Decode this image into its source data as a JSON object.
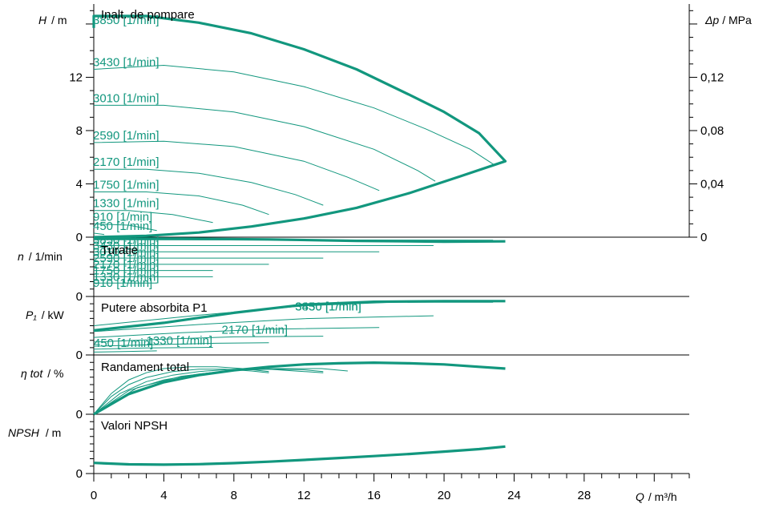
{
  "chart_data": {
    "type": "line",
    "colors": {
      "curve": "#12977e",
      "axis": "#000000"
    },
    "x_axis": {
      "label_sym": "Q",
      "label_unit": "/ m³/h",
      "ticks": [
        "0",
        "4",
        "8",
        "12",
        "16",
        "20",
        "24",
        "28"
      ],
      "range": [
        0,
        34
      ]
    },
    "panels": [
      {
        "id": "head",
        "title": "Inalt. de pompare",
        "ylabel_sym": "H",
        "ylabel_unit": "/ m",
        "yrange": [
          0,
          17.5
        ],
        "yticks": [
          "0",
          "4",
          "8",
          "12"
        ],
        "right_axis": {
          "label_sym": "Δp",
          "label_unit": "/ MPa",
          "ticks": [
            "0",
            "0,04",
            "0,08",
            "0,12"
          ],
          "values_in_left_units": [
            0,
            4,
            8,
            12
          ]
        },
        "speed_curves": [
          {
            "label": "3850 [1/min]",
            "points": [
              [
                0,
                16.6
              ],
              [
                3,
                16.6
              ],
              [
                6,
                16.1
              ],
              [
                9,
                15.3
              ],
              [
                12,
                14.1
              ],
              [
                15,
                12.6
              ],
              [
                18,
                10.7
              ],
              [
                20,
                9.4
              ],
              [
                22,
                7.8
              ],
              [
                23.5,
                5.7
              ]
            ]
          },
          {
            "label": "3430 [1/min]",
            "points": [
              [
                0,
                12.6
              ],
              [
                4,
                12.9
              ],
              [
                8,
                12.4
              ],
              [
                12,
                11.3
              ],
              [
                16,
                9.7
              ],
              [
                19,
                8.1
              ],
              [
                21.5,
                6.6
              ],
              [
                22.9,
                5.4
              ]
            ]
          },
          {
            "label": "3010 [1/min]",
            "points": [
              [
                0,
                9.9
              ],
              [
                4,
                9.9
              ],
              [
                8,
                9.4
              ],
              [
                12,
                8.3
              ],
              [
                16,
                6.6
              ],
              [
                18.5,
                5.0
              ],
              [
                19.5,
                4.2
              ]
            ]
          },
          {
            "label": "2590 [1/min]",
            "points": [
              [
                0,
                7.1
              ],
              [
                4,
                7.2
              ],
              [
                8,
                6.8
              ],
              [
                12,
                5.7
              ],
              [
                14.5,
                4.5
              ],
              [
                16.3,
                3.5
              ]
            ]
          },
          {
            "label": "2170 [1/min]",
            "points": [
              [
                0,
                5.1
              ],
              [
                3,
                5.1
              ],
              [
                6,
                4.8
              ],
              [
                9,
                4.1
              ],
              [
                11.5,
                3.2
              ],
              [
                13.1,
                2.4
              ]
            ]
          },
          {
            "label": "1750 [1/min]",
            "points": [
              [
                0,
                3.4
              ],
              [
                3,
                3.4
              ],
              [
                6,
                3.1
              ],
              [
                8.5,
                2.4
              ],
              [
                10,
                1.7
              ]
            ]
          },
          {
            "label": "1330 [1/min]",
            "points": [
              [
                0,
                2.0
              ],
              [
                2,
                2.0
              ],
              [
                4.5,
                1.7
              ],
              [
                6.8,
                1.1
              ]
            ]
          },
          {
            "label": "910 [1/min]",
            "points": [
              [
                0,
                1.0
              ],
              [
                2,
                0.9
              ],
              [
                3.6,
                0.5
              ]
            ]
          },
          {
            "label": "450 [1/min]",
            "points": [
              [
                0,
                0.3
              ],
              [
                0.6,
                0.2
              ]
            ]
          }
        ],
        "envelope": [
          [
            0,
            15.7
          ],
          [
            0,
            16.6
          ],
          [
            3,
            16.6
          ],
          [
            6,
            16.1
          ],
          [
            9,
            15.3
          ],
          [
            12,
            14.1
          ],
          [
            15,
            12.6
          ],
          [
            18,
            10.7
          ],
          [
            20,
            9.4
          ],
          [
            22,
            7.8
          ],
          [
            23.5,
            5.7
          ],
          [
            21,
            4.6
          ],
          [
            18,
            3.3
          ],
          [
            15,
            2.2
          ],
          [
            12,
            1.4
          ],
          [
            9,
            0.8
          ],
          [
            6,
            0.35
          ],
          [
            3,
            0.1
          ],
          [
            0,
            0
          ]
        ]
      },
      {
        "id": "speed",
        "title": "Turatie",
        "ylabel_sym": "n",
        "ylabel_unit": "/ 1/min",
        "yrange": [
          0,
          4000
        ],
        "yticks": [
          "0"
        ],
        "speed_curves": [
          {
            "label": "3850 [1/min]",
            "points": [
              [
                0,
                3820
              ],
              [
                22.8,
                3800
              ]
            ]
          },
          {
            "label": "3430 [1/min]",
            "points": [
              [
                0,
                3430
              ],
              [
                19.4,
                3430
              ]
            ]
          },
          {
            "label": "3010 [1/min]",
            "points": [
              [
                0,
                3010
              ],
              [
                16.3,
                3010
              ]
            ]
          },
          {
            "label": "2590 [1/min]",
            "points": [
              [
                0,
                2590
              ],
              [
                13.1,
                2590
              ]
            ]
          },
          {
            "label": "2170 [1/min]",
            "points": [
              [
                0,
                2170
              ],
              [
                10,
                2170
              ]
            ]
          },
          {
            "label": "1750 [1/min]",
            "points": [
              [
                0,
                1750
              ],
              [
                6.8,
                1750
              ]
            ]
          },
          {
            "label": "1330 [1/min]",
            "points": [
              [
                0,
                1330
              ],
              [
                6.8,
                1330
              ]
            ]
          },
          {
            "label": "910 [1/min]",
            "points": [
              [
                0,
                910
              ],
              [
                3.6,
                910
              ]
            ]
          }
        ],
        "envelope": [
          [
            0,
            3900
          ],
          [
            5,
            3900
          ],
          [
            10,
            3850
          ],
          [
            15,
            3750
          ],
          [
            20,
            3700
          ],
          [
            23.5,
            3720
          ]
        ]
      },
      {
        "id": "power",
        "title": "Putere absorbita P1",
        "ylabel_sym": "P₁",
        "ylabel_unit": "/ kW",
        "yrange": [
          0,
          1.0
        ],
        "yticks": [
          "0"
        ],
        "curve_labels": [
          {
            "label": "3850 [1/min]",
            "at": [
              11.5,
              0.76
            ]
          },
          {
            "label": "3430 [1/min]",
            "at": [
              11.5,
              0.76
            ]
          },
          {
            "label": "2170 [1/min]",
            "at": [
              7.3,
              0.36
            ]
          },
          {
            "label": "1330 [1/min]",
            "at": [
              3,
              0.18
            ]
          },
          {
            "label": "450 [1/min]",
            "at": [
              0,
              0.14
            ]
          }
        ],
        "speed_curves": [
          {
            "points": [
              [
                0,
                0.5
              ],
              [
                6,
                0.68
              ],
              [
                12,
                0.84
              ],
              [
                17,
                0.9
              ],
              [
                22.8,
                0.9
              ]
            ]
          },
          {
            "points": [
              [
                0,
                0.4
              ],
              [
                6,
                0.52
              ],
              [
                12,
                0.62
              ],
              [
                19.4,
                0.67
              ]
            ]
          },
          {
            "points": [
              [
                0,
                0.3
              ],
              [
                5,
                0.38
              ],
              [
                10,
                0.44
              ],
              [
                16.3,
                0.47
              ]
            ]
          },
          {
            "points": [
              [
                0,
                0.22
              ],
              [
                4,
                0.27
              ],
              [
                8,
                0.31
              ],
              [
                13.1,
                0.32
              ]
            ]
          },
          {
            "points": [
              [
                0,
                0.15
              ],
              [
                4,
                0.18
              ],
              [
                7,
                0.2
              ],
              [
                10,
                0.21
              ]
            ]
          },
          {
            "points": [
              [
                0,
                0.1
              ],
              [
                3,
                0.12
              ],
              [
                6.8,
                0.13
              ]
            ]
          },
          {
            "points": [
              [
                0,
                0.05
              ],
              [
                2,
                0.06
              ],
              [
                3.6,
                0.07
              ]
            ]
          }
        ],
        "envelope": [
          [
            0,
            0.42
          ],
          [
            4,
            0.55
          ],
          [
            8,
            0.72
          ],
          [
            12,
            0.86
          ],
          [
            16,
            0.91
          ],
          [
            20,
            0.92
          ],
          [
            23.5,
            0.92
          ]
        ]
      },
      {
        "id": "efficiency",
        "title": "Randament total",
        "ylabel_sym": "η tot",
        "ylabel_unit": "/ %",
        "yrange": [
          0,
          100
        ],
        "yticks": [
          "0"
        ],
        "speed_curves": [
          {
            "points": [
              [
                0,
                0
              ],
              [
                1,
                35
              ],
              [
                2,
                58
              ],
              [
                3,
                70
              ],
              [
                4,
                77
              ],
              [
                5.5,
                80
              ],
              [
                7,
                80
              ],
              [
                8.5,
                77
              ],
              [
                10,
                72
              ]
            ]
          },
          {
            "points": [
              [
                0,
                0
              ],
              [
                1,
                30
              ],
              [
                2,
                50
              ],
              [
                3,
                62
              ],
              [
                4.5,
                72
              ],
              [
                6,
                76
              ],
              [
                7.5,
                76
              ],
              [
                9,
                73
              ],
              [
                10,
                70
              ]
            ]
          },
          {
            "points": [
              [
                0,
                0
              ],
              [
                1.5,
                35
              ],
              [
                3,
                55
              ],
              [
                4.5,
                66
              ],
              [
                6,
                72
              ],
              [
                8,
                76
              ],
              [
                10,
                76
              ],
              [
                11.5,
                73
              ],
              [
                13.1,
                70
              ]
            ]
          },
          {
            "points": [
              [
                0,
                0
              ],
              [
                2,
                40
              ],
              [
                4,
                58
              ],
              [
                6,
                68
              ],
              [
                8,
                74
              ],
              [
                10,
                76
              ],
              [
                12,
                75
              ],
              [
                13.1,
                72
              ]
            ]
          },
          {
            "points": [
              [
                0,
                0
              ],
              [
                2.5,
                45
              ],
              [
                5,
                64
              ],
              [
                7.5,
                73
              ],
              [
                10,
                77
              ],
              [
                13,
                77
              ],
              [
                14.5,
                73
              ]
            ]
          }
        ],
        "envelope": [
          [
            0,
            0
          ],
          [
            2,
            34
          ],
          [
            4,
            54
          ],
          [
            6,
            66
          ],
          [
            8,
            74
          ],
          [
            10,
            80
          ],
          [
            12,
            84
          ],
          [
            14,
            86
          ],
          [
            16,
            87
          ],
          [
            18,
            86
          ],
          [
            20,
            84
          ],
          [
            22,
            80
          ],
          [
            23.5,
            77
          ]
        ]
      },
      {
        "id": "npsh",
        "title": "Valori NPSH",
        "ylabel_sym": "NPSH",
        "ylabel_unit": "/ m",
        "yrange": [
          0,
          4
        ],
        "yticks": [
          "0"
        ],
        "speed_curves": [],
        "envelope": [
          [
            0,
            0.72
          ],
          [
            2,
            0.62
          ],
          [
            4,
            0.6
          ],
          [
            6,
            0.63
          ],
          [
            8,
            0.7
          ],
          [
            10,
            0.8
          ],
          [
            12,
            0.92
          ],
          [
            14,
            1.05
          ],
          [
            16,
            1.18
          ],
          [
            18,
            1.32
          ],
          [
            20,
            1.48
          ],
          [
            22,
            1.65
          ],
          [
            23.5,
            1.82
          ]
        ]
      }
    ]
  }
}
